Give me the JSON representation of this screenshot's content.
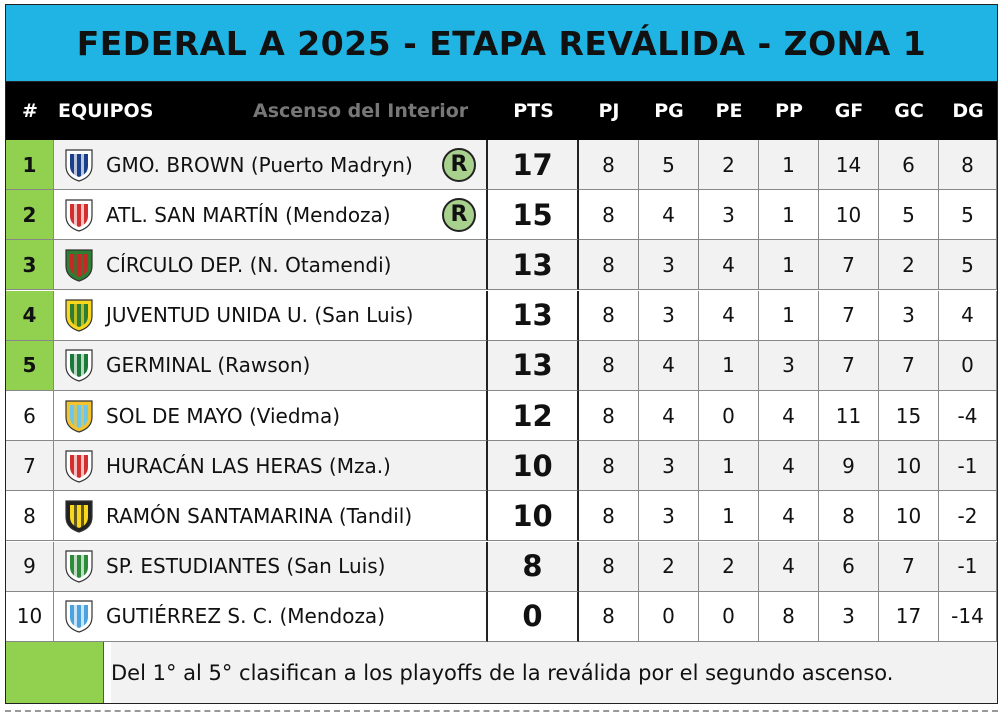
{
  "title": "FEDERAL A 2025 - ETAPA REVÁLIDA - ZONA 1",
  "header": {
    "pos": "#",
    "team": "EQUIPOS",
    "brand": "Ascenso del Interior",
    "pts": "PTS",
    "pj": "PJ",
    "pg": "PG",
    "pe": "PE",
    "pp": "PP",
    "gf": "GF",
    "gc": "GC",
    "dg": "DG"
  },
  "badge_label": "R",
  "colors": {
    "title_bg": "#1fb4e3",
    "qualify": "#92d050",
    "badge": "#a9d18e"
  },
  "rows": [
    {
      "pos": "1",
      "team": "GMO. BROWN (Puerto Madryn)",
      "pts": "17",
      "pj": "8",
      "pg": "5",
      "pe": "2",
      "pp": "1",
      "gf": "14",
      "gc": "6",
      "dg": "8",
      "qualified": true,
      "badge": true,
      "crest": "brown-crest-icon",
      "c1": "#1b3f8b",
      "c2": "#ffffff"
    },
    {
      "pos": "2",
      "team": "ATL. SAN MARTÍN (Mendoza)",
      "pts": "15",
      "pj": "8",
      "pg": "4",
      "pe": "3",
      "pp": "1",
      "gf": "10",
      "gc": "5",
      "dg": "5",
      "qualified": true,
      "badge": true,
      "crest": "sanmartin-crest-icon",
      "c1": "#d32f2f",
      "c2": "#ffffff"
    },
    {
      "pos": "3",
      "team": "CÍRCULO DEP. (N. Otamendi)",
      "pts": "13",
      "pj": "8",
      "pg": "3",
      "pe": "4",
      "pp": "1",
      "gf": "7",
      "gc": "2",
      "dg": "5",
      "qualified": true,
      "badge": false,
      "crest": "circulo-crest-icon",
      "c1": "#c62828",
      "c2": "#2e7d32"
    },
    {
      "pos": "4",
      "team": "JUVENTUD UNIDA U. (San Luis)",
      "pts": "13",
      "pj": "8",
      "pg": "3",
      "pe": "4",
      "pp": "1",
      "gf": "7",
      "gc": "3",
      "dg": "4",
      "qualified": true,
      "badge": false,
      "crest": "juventud-crest-icon",
      "c1": "#2e7d32",
      "c2": "#f9d71c"
    },
    {
      "pos": "5",
      "team": "GERMINAL (Rawson)",
      "pts": "13",
      "pj": "8",
      "pg": "4",
      "pe": "1",
      "pp": "3",
      "gf": "7",
      "gc": "7",
      "dg": "0",
      "qualified": true,
      "badge": false,
      "crest": "germinal-crest-icon",
      "c1": "#1b7a3a",
      "c2": "#ffffff"
    },
    {
      "pos": "6",
      "team": "SOL DE MAYO (Viedma)",
      "pts": "12",
      "pj": "8",
      "pg": "4",
      "pe": "0",
      "pp": "4",
      "gf": "11",
      "gc": "15",
      "dg": "-4",
      "qualified": false,
      "badge": false,
      "crest": "soldemayo-crest-icon",
      "c1": "#6ec6ea",
      "c2": "#f4c430"
    },
    {
      "pos": "7",
      "team": "HURACÁN LAS HERAS (Mza.)",
      "pts": "10",
      "pj": "8",
      "pg": "3",
      "pe": "1",
      "pp": "4",
      "gf": "9",
      "gc": "10",
      "dg": "-1",
      "qualified": false,
      "badge": false,
      "crest": "huracan-crest-icon",
      "c1": "#d32f2f",
      "c2": "#ffffff"
    },
    {
      "pos": "8",
      "team": "RAMÓN SANTAMARINA (Tandil)",
      "pts": "10",
      "pj": "8",
      "pg": "3",
      "pe": "1",
      "pp": "4",
      "gf": "8",
      "gc": "10",
      "dg": "-2",
      "qualified": false,
      "badge": false,
      "crest": "santamarina-crest-icon",
      "c1": "#f9d71c",
      "c2": "#222222"
    },
    {
      "pos": "9",
      "team": "SP. ESTUDIANTES (San Luis)",
      "pts": "8",
      "pj": "8",
      "pg": "2",
      "pe": "2",
      "pp": "4",
      "gf": "6",
      "gc": "7",
      "dg": "-1",
      "qualified": false,
      "badge": false,
      "crest": "estudiantes-crest-icon",
      "c1": "#2e8b3a",
      "c2": "#ffffff"
    },
    {
      "pos": "10",
      "team": "GUTIÉRREZ S. C. (Mendoza)",
      "pts": "0",
      "pj": "8",
      "pg": "0",
      "pe": "0",
      "pp": "8",
      "gf": "3",
      "gc": "17",
      "dg": "-14",
      "qualified": false,
      "badge": false,
      "crest": "gutierrez-crest-icon",
      "c1": "#4aa3df",
      "c2": "#ffffff"
    }
  ],
  "footer_text": "Del 1° al 5° clasifican a los playoffs de la reválida por el segundo ascenso."
}
